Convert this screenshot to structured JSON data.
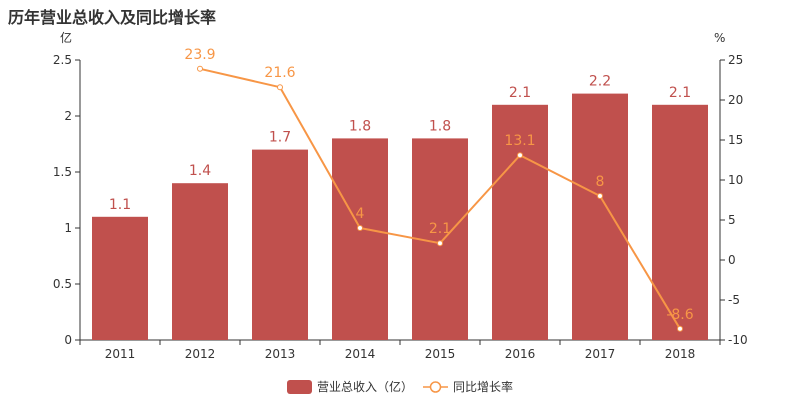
{
  "title": "历年营业总收入及同比增长率",
  "colors": {
    "bar": "#c0504d",
    "line": "#f79646",
    "axis": "#333333"
  },
  "chart_data": {
    "type": "bar",
    "categories": [
      "2011",
      "2012",
      "2013",
      "2014",
      "2015",
      "2016",
      "2017",
      "2018"
    ],
    "series": [
      {
        "name": "营业总收入（亿）",
        "type": "bar",
        "axis": "left",
        "values": [
          1.1,
          1.4,
          1.7,
          1.8,
          1.8,
          2.1,
          2.2,
          2.1
        ],
        "labels": [
          "1.1",
          "1.4",
          "1.7",
          "1.8",
          "1.8",
          "2.1",
          "2.2",
          "2.1"
        ]
      },
      {
        "name": "同比增长率",
        "type": "line",
        "axis": "right",
        "values": [
          null,
          23.9,
          21.6,
          4,
          2.1,
          13.1,
          8,
          -8.6
        ],
        "labels": [
          "",
          "23.9",
          "21.6",
          "4",
          "2.1",
          "13.1",
          "8",
          "-8.6"
        ]
      }
    ],
    "y_left": {
      "unit": "亿",
      "ylim": [
        0,
        2.5
      ],
      "ticks": [
        "0",
        "0.5",
        "1",
        "1.5",
        "2",
        "2.5"
      ]
    },
    "y_right": {
      "unit": "%",
      "ylim": [
        -10,
        25
      ],
      "ticks": [
        "-10",
        "-5",
        "0",
        "5",
        "10",
        "15",
        "20",
        "25"
      ]
    },
    "grid": false,
    "legend": "bottom-center"
  }
}
